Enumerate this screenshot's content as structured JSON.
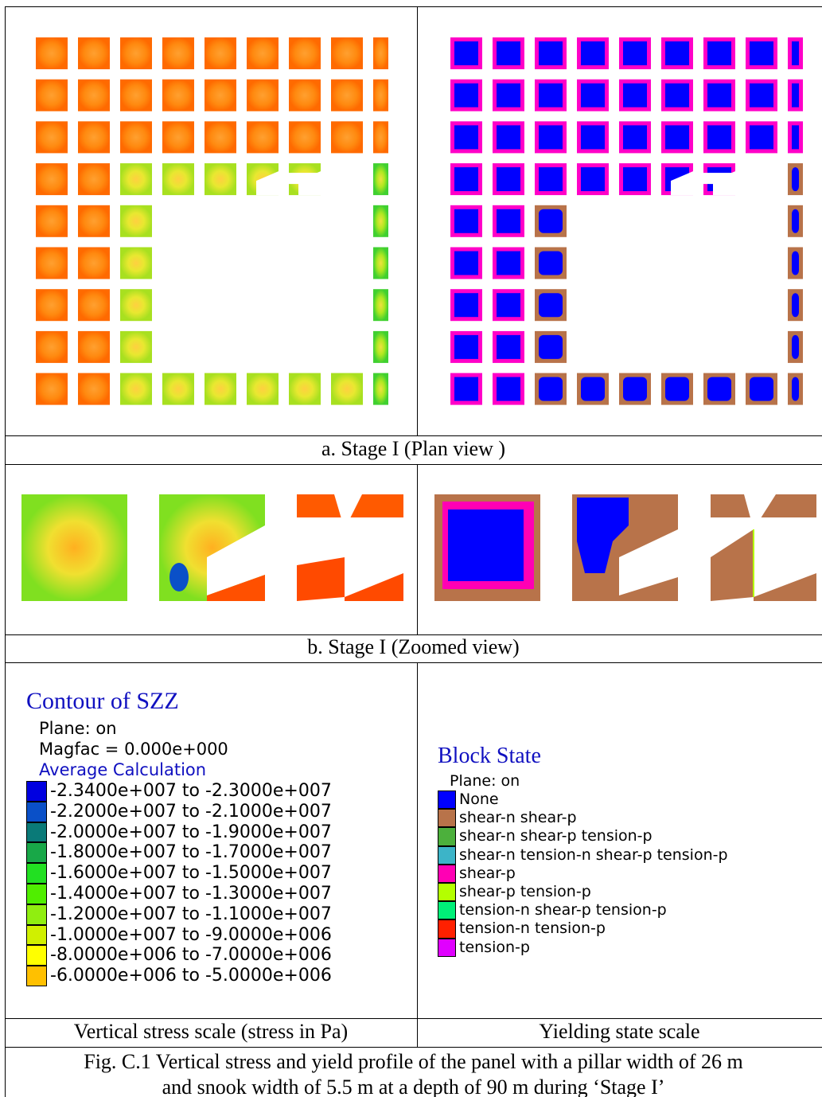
{
  "panels": {
    "plan_caption": "a.   Stage I (Plan view )",
    "zoom_caption": "b.   Stage I (Zoomed view)",
    "stress_scale_caption": "Vertical stress scale (stress in Pa)",
    "yield_scale_caption": "Yielding state scale"
  },
  "contour_legend": {
    "title": "Contour of SZZ",
    "lines": [
      "Plane: on",
      "Magfac =  0.000e+000"
    ],
    "subtitle": "Average Calculation",
    "entries": [
      {
        "label": "-2.3400e+007 to -2.3000e+007",
        "color": "#0000e0"
      },
      {
        "label": "-2.2000e+007 to -2.1000e+007",
        "color": "#0a50c8"
      },
      {
        "label": "-2.0000e+007 to -1.9000e+007",
        "color": "#0a7a78"
      },
      {
        "label": "-1.8000e+007 to -1.7000e+007",
        "color": "#18a848"
      },
      {
        "label": "-1.6000e+007 to -1.5000e+007",
        "color": "#22e022"
      },
      {
        "label": "-1.4000e+007 to -1.3000e+007",
        "color": "#50ee00"
      },
      {
        "label": "-1.2000e+007 to -1.1000e+007",
        "color": "#90ee10"
      },
      {
        "label": "-1.0000e+007 to -9.0000e+006",
        "color": "#d0f000"
      },
      {
        "label": "-8.0000e+006 to -7.0000e+006",
        "color": "#ffff00"
      },
      {
        "label": "-6.0000e+006 to -5.0000e+006",
        "color": "#ffc000"
      }
    ]
  },
  "block_legend": {
    "title": "Block State",
    "lines": [
      "Plane: on"
    ],
    "entries": [
      {
        "label": "None",
        "color": "#0000ff"
      },
      {
        "label": "shear-n shear-p",
        "color": "#b8734a"
      },
      {
        "label": "shear-n shear-p tension-p",
        "color": "#4cb03c"
      },
      {
        "label": "shear-n tension-n shear-p tension-p",
        "color": "#3cb4c8"
      },
      {
        "label": "shear-p",
        "color": "#ff00b4"
      },
      {
        "label": "shear-p tension-p",
        "color": "#b4ff00"
      },
      {
        "label": "tension-n shear-p tension-p",
        "color": "#00f078"
      },
      {
        "label": "tension-n tension-p",
        "color": "#ff2000"
      },
      {
        "label": "tension-p",
        "color": "#e000ff"
      }
    ]
  },
  "figure_caption": [
    "Fig. C.1 Vertical stress and yield profile of the panel with a pillar width of 26 m",
    "and snook width of 5.5 m at a depth of 90 m during ‘Stage I’"
  ]
}
